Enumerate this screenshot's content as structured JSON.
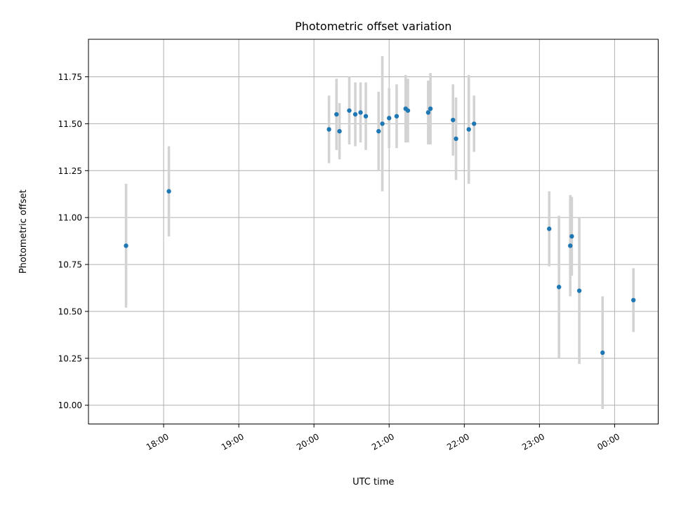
{
  "chart_data": {
    "type": "scatter",
    "title": "Photometric offset variation",
    "xlabel": "UTC time",
    "ylabel": "Photometric offset",
    "x_ticks": [
      "18:00",
      "19:00",
      "20:00",
      "21:00",
      "22:00",
      "23:00",
      "00:00"
    ],
    "x_tick_hours": [
      18,
      19,
      20,
      21,
      22,
      23,
      24
    ],
    "x_range_hours": [
      17.0,
      24.58
    ],
    "y_ticks": [
      "10.00",
      "10.25",
      "10.50",
      "10.75",
      "11.00",
      "11.25",
      "11.50",
      "11.75"
    ],
    "y_tick_values": [
      10.0,
      10.25,
      10.5,
      10.75,
      11.0,
      11.25,
      11.5,
      11.75
    ],
    "ylim": [
      9.9,
      11.95
    ],
    "grid": true,
    "colors": {
      "marker": "#1f77b4",
      "errorbar": "#d3d3d3",
      "grid": "#b0b0b0"
    },
    "points": [
      {
        "time": "17:30",
        "hours": 17.5,
        "offset": 10.85,
        "error": 0.33
      },
      {
        "time": "18:04",
        "hours": 18.07,
        "offset": 11.14,
        "error": 0.24
      },
      {
        "time": "20:12",
        "hours": 20.2,
        "offset": 11.47,
        "error": 0.18
      },
      {
        "time": "20:18",
        "hours": 20.3,
        "offset": 11.55,
        "error": 0.19
      },
      {
        "time": "20:20",
        "hours": 20.34,
        "offset": 11.46,
        "error": 0.15
      },
      {
        "time": "20:28",
        "hours": 20.47,
        "offset": 11.57,
        "error": 0.18
      },
      {
        "time": "20:33",
        "hours": 20.55,
        "offset": 11.55,
        "error": 0.17
      },
      {
        "time": "20:37",
        "hours": 20.62,
        "offset": 11.56,
        "error": 0.16
      },
      {
        "time": "20:41",
        "hours": 20.69,
        "offset": 11.54,
        "error": 0.18
      },
      {
        "time": "20:51",
        "hours": 20.86,
        "offset": 11.46,
        "error": 0.21
      },
      {
        "time": "20:54",
        "hours": 20.91,
        "offset": 11.5,
        "error": 0.36
      },
      {
        "time": "21:00",
        "hours": 21.0,
        "offset": 11.53,
        "error": 0.16
      },
      {
        "time": "21:06",
        "hours": 21.1,
        "offset": 11.54,
        "error": 0.17
      },
      {
        "time": "21:13",
        "hours": 21.22,
        "offset": 11.58,
        "error": 0.18
      },
      {
        "time": "21:15",
        "hours": 21.25,
        "offset": 11.57,
        "error": 0.17
      },
      {
        "time": "21:31",
        "hours": 21.52,
        "offset": 11.56,
        "error": 0.17
      },
      {
        "time": "21:33",
        "hours": 21.55,
        "offset": 11.58,
        "error": 0.19
      },
      {
        "time": "21:51",
        "hours": 21.85,
        "offset": 11.52,
        "error": 0.19
      },
      {
        "time": "21:53",
        "hours": 21.89,
        "offset": 11.42,
        "error": 0.22
      },
      {
        "time": "22:04",
        "hours": 22.06,
        "offset": 11.47,
        "error": 0.29
      },
      {
        "time": "22:08",
        "hours": 22.13,
        "offset": 11.5,
        "error": 0.15
      },
      {
        "time": "23:08",
        "hours": 23.13,
        "offset": 10.94,
        "error": 0.2
      },
      {
        "time": "23:15",
        "hours": 23.26,
        "offset": 10.63,
        "error": 0.38
      },
      {
        "time": "23:25",
        "hours": 23.41,
        "offset": 10.85,
        "error": 0.27
      },
      {
        "time": "23:26",
        "hours": 23.43,
        "offset": 10.9,
        "error": 0.21
      },
      {
        "time": "23:32",
        "hours": 23.53,
        "offset": 10.61,
        "error": 0.39
      },
      {
        "time": "23:50",
        "hours": 23.84,
        "offset": 10.28,
        "error": 0.3
      },
      {
        "time": "00:15",
        "hours": 24.25,
        "offset": 10.56,
        "error": 0.17
      }
    ]
  }
}
